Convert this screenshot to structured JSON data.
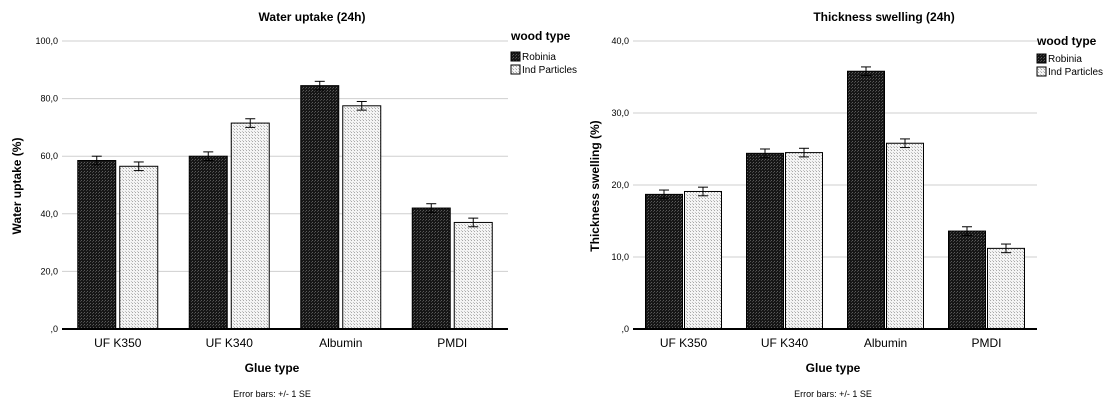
{
  "chart_data": [
    {
      "type": "bar",
      "title": "Water uptake (24h)",
      "xlabel": "Glue type",
      "ylabel": "Water uptake (%)",
      "ylim": [
        0,
        100
      ],
      "yticks": [
        0,
        20,
        40,
        60,
        80,
        100
      ],
      "ytick_labels": [
        ",0",
        "20,0",
        "40,0",
        "60,0",
        "80,0",
        "100,0"
      ],
      "grid": true,
      "categories": [
        "UF K350",
        "UF K340",
        "Albumin",
        "PMDI"
      ],
      "legend_title": "wood type",
      "legend_position": "top-right",
      "series": [
        {
          "name": "Robinia",
          "color": "#222222",
          "pattern": "dark-crosshatch",
          "values": [
            58.5,
            60.0,
            84.5,
            42.0
          ],
          "se": [
            1.5,
            1.5,
            1.5,
            1.5
          ]
        },
        {
          "name": "Ind Particles",
          "color": "#eeeeee",
          "pattern": "light-dots",
          "values": [
            56.5,
            71.5,
            77.5,
            37.0
          ],
          "se": [
            1.5,
            1.5,
            1.5,
            1.5
          ]
        }
      ],
      "note": "Error bars: +/- 1 SE"
    },
    {
      "type": "bar",
      "title": "Thickness swelling (24h)",
      "xlabel": "Glue type",
      "ylabel": "Thickness swelling (%)",
      "ylim": [
        0,
        40
      ],
      "yticks": [
        0,
        10,
        20,
        30,
        40
      ],
      "ytick_labels": [
        ",0",
        "10,0",
        "20,0",
        "30,0",
        "40,0"
      ],
      "grid": true,
      "categories": [
        "UF K350",
        "UF K340",
        "Albumin",
        "PMDI"
      ],
      "legend_title": "wood type",
      "legend_position": "top-right",
      "series": [
        {
          "name": "Robinia",
          "color": "#222222",
          "pattern": "dark-crosshatch",
          "values": [
            18.7,
            24.4,
            35.8,
            13.6
          ],
          "se": [
            0.6,
            0.6,
            0.6,
            0.6
          ]
        },
        {
          "name": "Ind Particles",
          "color": "#eeeeee",
          "pattern": "light-dots",
          "values": [
            19.1,
            24.5,
            25.8,
            11.2
          ],
          "se": [
            0.6,
            0.6,
            0.6,
            0.6
          ]
        }
      ],
      "note": "Error bars: +/- 1 SE"
    }
  ]
}
